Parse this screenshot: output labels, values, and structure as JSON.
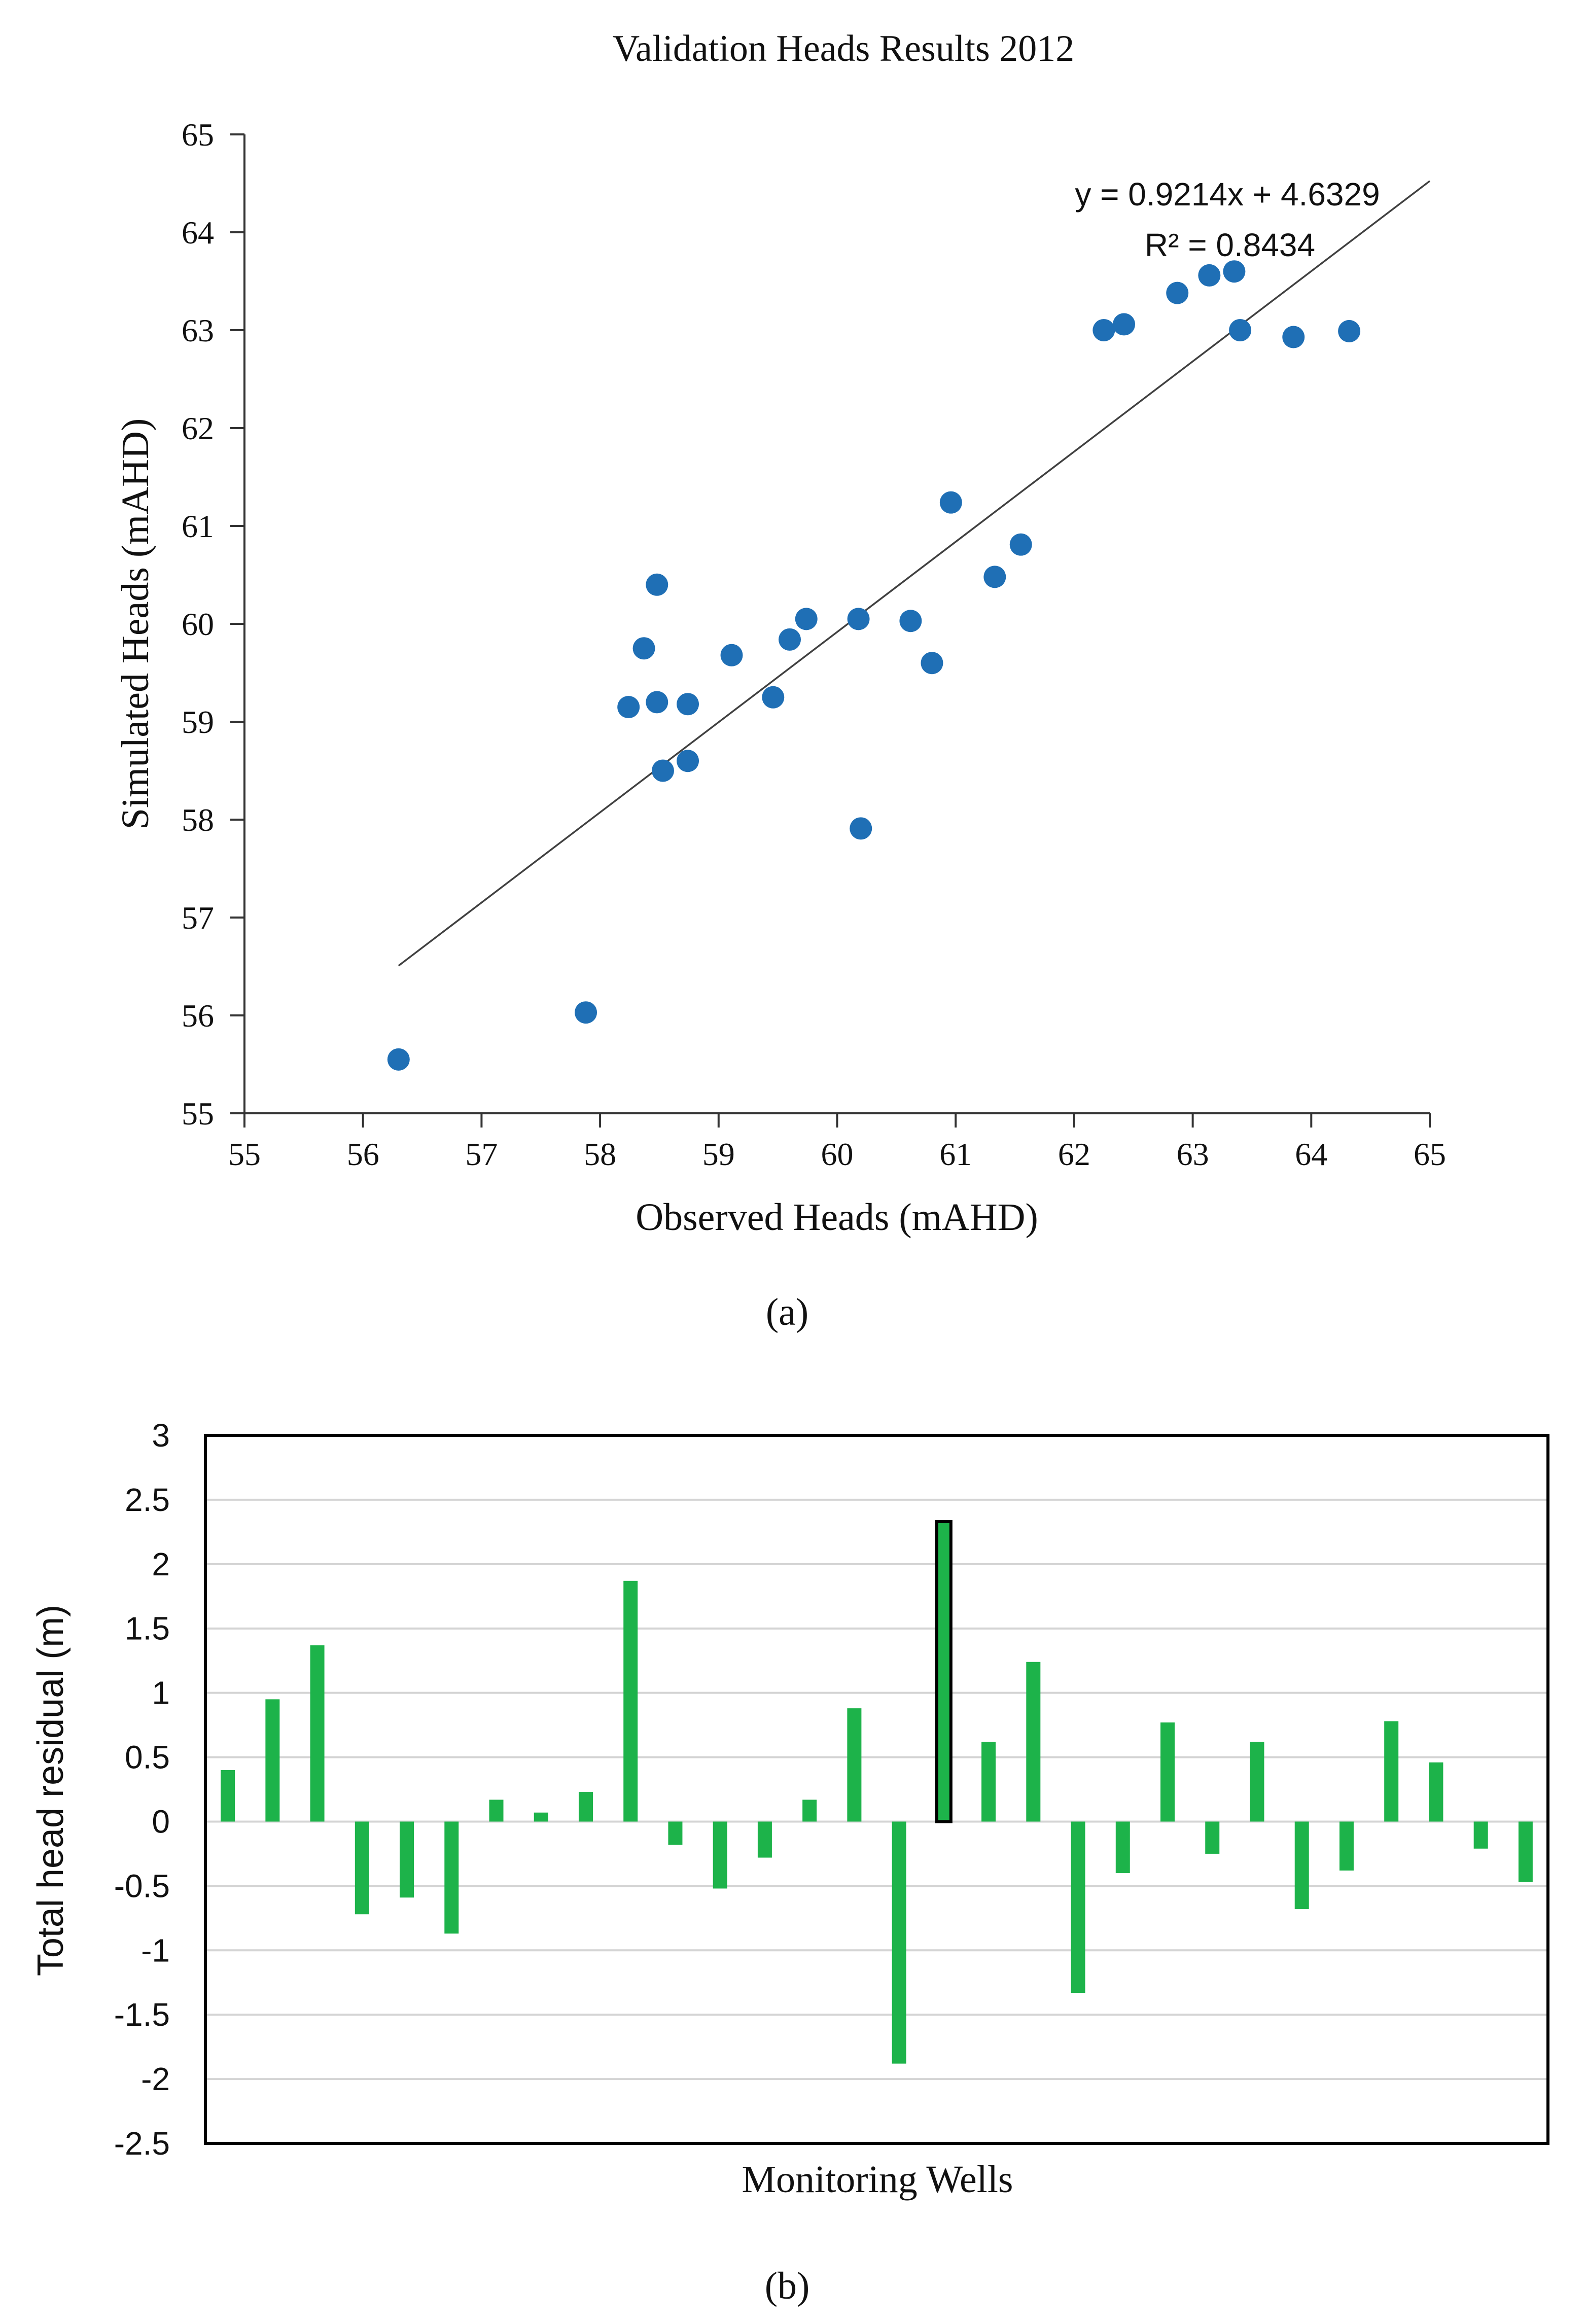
{
  "chart_data": [
    {
      "type": "scatter",
      "title": "Validation Heads Results 2012",
      "xlabel": "Observed Heads (mAHD)",
      "ylabel": "Simulated Heads (mAHD)",
      "xlim": [
        55,
        65
      ],
      "ylim": [
        55,
        65
      ],
      "xticks": [
        "55",
        "56",
        "57",
        "58",
        "59",
        "60",
        "61",
        "62",
        "63",
        "64",
        "65"
      ],
      "yticks": [
        "55",
        "56",
        "57",
        "58",
        "59",
        "60",
        "61",
        "62",
        "63",
        "64",
        "65"
      ],
      "grid": false,
      "marker_color": "#1f6fb5",
      "points": [
        [
          56.3,
          55.55
        ],
        [
          57.88,
          56.03
        ],
        [
          58.24,
          59.15
        ],
        [
          58.37,
          59.75
        ],
        [
          58.48,
          60.4
        ],
        [
          58.48,
          59.2
        ],
        [
          58.53,
          58.5
        ],
        [
          58.74,
          59.18
        ],
        [
          58.74,
          58.6
        ],
        [
          59.11,
          59.68
        ],
        [
          59.46,
          59.25
        ],
        [
          59.6,
          59.84
        ],
        [
          59.74,
          60.05
        ],
        [
          60.18,
          60.05
        ],
        [
          60.2,
          57.91
        ],
        [
          60.62,
          60.03
        ],
        [
          60.8,
          59.6
        ],
        [
          60.96,
          61.24
        ],
        [
          61.33,
          60.48
        ],
        [
          61.55,
          60.81
        ],
        [
          62.25,
          63.0
        ],
        [
          62.42,
          63.06
        ],
        [
          62.87,
          63.38
        ],
        [
          63.14,
          63.56
        ],
        [
          63.35,
          63.6
        ],
        [
          63.4,
          63.0
        ],
        [
          63.85,
          62.93
        ],
        [
          64.32,
          62.99
        ]
      ],
      "trendline": {
        "slope": 0.9214,
        "intercept": 4.6329,
        "x_start": 56.3,
        "x_end": 65.0,
        "color": "#404040"
      },
      "annotations": {
        "equation": "y = 0.9214x + 4.6329",
        "r2": "R² = 0.8434"
      },
      "caption": "(a)"
    },
    {
      "type": "bar",
      "xlabel": "Monitoring Wells",
      "ylabel": "Total head residual (m)",
      "ylim": [
        -2.5,
        3
      ],
      "yticks": [
        "3",
        "2.5",
        "2",
        "1.5",
        "1",
        "0.5",
        "0",
        "-0.5",
        "-1",
        "-1.5",
        "-2",
        "-2.5"
      ],
      "grid": true,
      "bar_color": "#1db34a",
      "highlight_index": 16,
      "values": [
        0.4,
        0.95,
        1.37,
        -0.72,
        -0.59,
        -0.87,
        0.17,
        0.07,
        0.23,
        1.87,
        -0.18,
        -0.52,
        -0.28,
        0.17,
        0.88,
        -1.88,
        2.33,
        0.62,
        1.24,
        -1.33,
        -0.4,
        0.77,
        -0.25,
        0.62,
        -0.68,
        -0.38,
        0.78,
        0.46,
        -0.21,
        -0.47
      ],
      "caption": "(b)"
    }
  ]
}
